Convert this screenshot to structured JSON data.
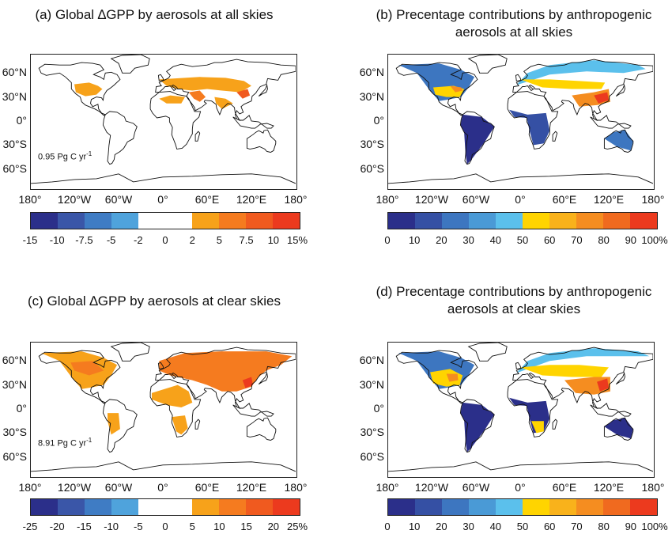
{
  "panels": [
    {
      "title": "(a) Global ∆GPP by aerosols at all skies",
      "note": "0.95 Pg C yr",
      "note_sup": "-1",
      "scheme": "diverging"
    },
    {
      "title": "(b) Precentage contributions by anthropogenic\naerosols at all skies",
      "note": "",
      "note_sup": "",
      "scheme": "sequential"
    },
    {
      "title": "(c) Global ∆GPP by aerosols at clear skies",
      "note": "8.91 Pg C yr",
      "note_sup": "-1",
      "scheme": "diverging"
    },
    {
      "title": "(d) Precentage contributions by anthropogenic\naerosols at clear skies",
      "note": "",
      "note_sup": "",
      "scheme": "sequential"
    }
  ],
  "axes": {
    "lat_labels": [
      "60°N",
      "30°N",
      "0°",
      "30°S",
      "60°S"
    ],
    "lon_labels": [
      "180°",
      "120°W",
      "60°W",
      "0°",
      "60°E",
      "120°E",
      "180°"
    ]
  },
  "colorbars": {
    "a": {
      "labels": [
        "-15",
        "-10",
        "-7.5",
        "-5",
        "-2",
        "0",
        "2",
        "5",
        "7.5",
        "10",
        "15%"
      ],
      "colors": [
        "#2b2f8a",
        "#3a56a8",
        "#3f7cc4",
        "#4fa3dc",
        "#ffffff",
        "#ffffff",
        "#f7a21a",
        "#f57b1f",
        "#f05a1f",
        "#ec3a1e"
      ]
    },
    "b": {
      "labels": [
        "0",
        "10",
        "20",
        "30",
        "40",
        "50",
        "60",
        "70",
        "80",
        "90",
        "100%"
      ],
      "colors": [
        "#2b2f8a",
        "#3550a4",
        "#3d76c0",
        "#4a9ad6",
        "#5bc0ec",
        "#ffd400",
        "#f9b21b",
        "#f58d20",
        "#f06a1f",
        "#ec3a1e"
      ]
    },
    "c": {
      "labels": [
        "-25",
        "-20",
        "-15",
        "-10",
        "-5",
        "0",
        "5",
        "10",
        "15",
        "20",
        "25%"
      ],
      "colors": [
        "#2b2f8a",
        "#3a56a8",
        "#3f7cc4",
        "#4fa3dc",
        "#ffffff",
        "#ffffff",
        "#f7a21a",
        "#f57b1f",
        "#f05a1f",
        "#ec3a1e"
      ]
    },
    "d": {
      "labels": [
        "0",
        "10",
        "20",
        "30",
        "40",
        "50",
        "60",
        "70",
        "80",
        "90",
        "100%"
      ],
      "colors": [
        "#2b2f8a",
        "#3550a4",
        "#3d76c0",
        "#4a9ad6",
        "#5bc0ec",
        "#ffd400",
        "#f9b21b",
        "#f58d20",
        "#f06a1f",
        "#ec3a1e"
      ]
    }
  }
}
